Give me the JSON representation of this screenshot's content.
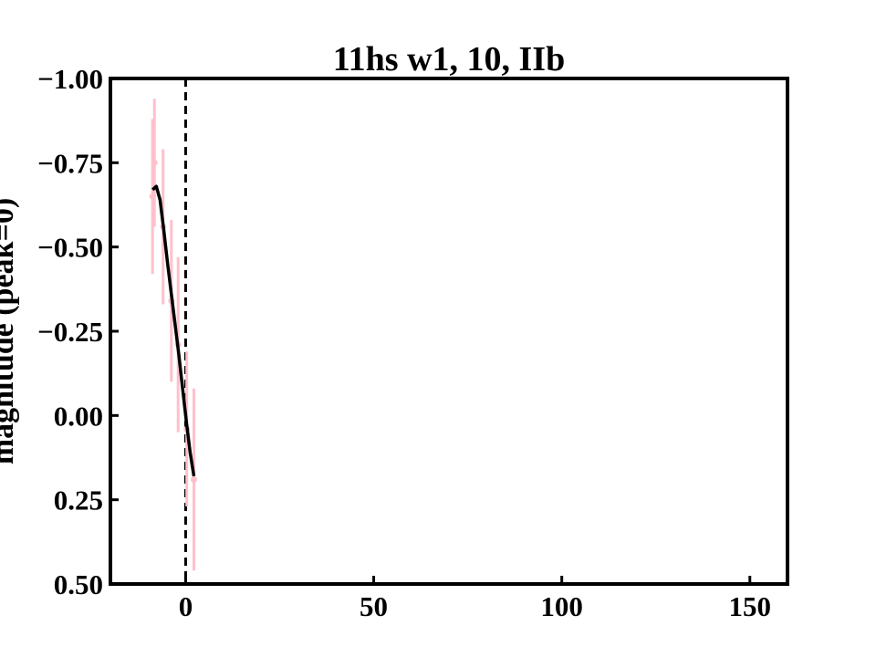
{
  "chart_data": {
    "type": "scatter",
    "title": "11hs w1, 10, IIb",
    "xlabel": "",
    "ylabel": "magnitude (peak=0)",
    "xlim": [
      -20,
      160
    ],
    "ylim": [
      0.5,
      -1.0
    ],
    "y_inverted": true,
    "x_ticks": [
      0,
      50,
      100,
      150
    ],
    "x_tick_labels": [
      "0",
      "50",
      "100",
      "150"
    ],
    "y_ticks": [
      -1.0,
      -0.75,
      -0.5,
      -0.25,
      0.0,
      0.25,
      0.5
    ],
    "y_tick_labels": [
      "−1.00",
      "−0.75",
      "−0.50",
      "−0.25",
      "0.00",
      "0.25",
      "0.50"
    ],
    "peak_line_x": 0,
    "grid": false,
    "series": [
      {
        "kind": "errorbar",
        "color": "#ffc0cb",
        "points": [
          {
            "x": -8.8,
            "y": -0.65,
            "err": 0.23
          },
          {
            "x": -8.3,
            "y": -0.75,
            "err": 0.19
          },
          {
            "x": -6.0,
            "y": -0.56,
            "err": 0.23
          },
          {
            "x": -3.8,
            "y": -0.34,
            "err": 0.24
          },
          {
            "x": -2.0,
            "y": -0.21,
            "err": 0.26
          },
          {
            "x": 0.3,
            "y": 0.04,
            "err": 0.23
          },
          {
            "x": 2.2,
            "y": 0.19,
            "err": 0.27
          }
        ]
      },
      {
        "kind": "line",
        "color": "#000000",
        "x": [
          -8.8,
          -7.8,
          -6.8,
          -5.8,
          -4.8,
          -3.8,
          -2.8,
          -1.8,
          -0.8,
          0.2,
          1.2,
          2.2
        ],
        "y": [
          -0.67,
          -0.68,
          -0.64,
          -0.55,
          -0.45,
          -0.36,
          -0.27,
          -0.18,
          -0.08,
          0.02,
          0.11,
          0.18
        ]
      }
    ]
  }
}
